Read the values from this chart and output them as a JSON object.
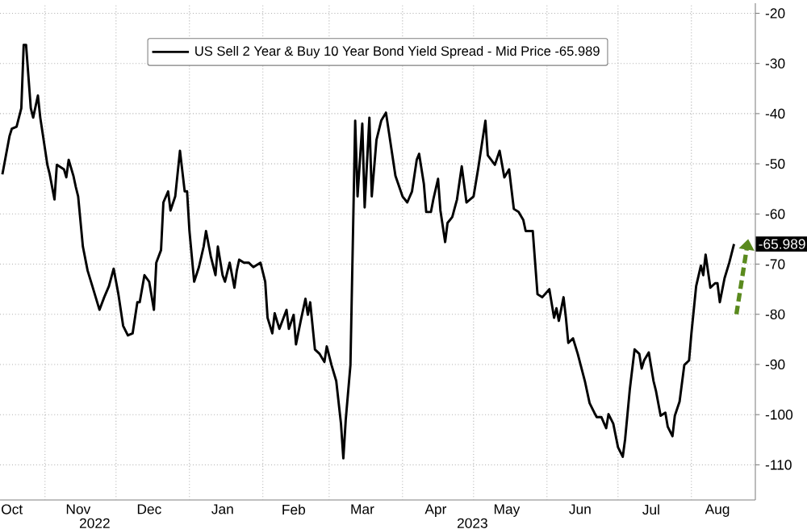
{
  "chart_data": {
    "type": "line",
    "annotations": [
      "2022",
      "2023"
    ],
    "x": [
      "2022-10-14",
      "2022-10-17",
      "2022-10-18",
      "2022-10-20",
      "2022-10-22",
      "2022-10-23",
      "2022-10-24",
      "2022-10-26",
      "2022-10-27",
      "2022-10-29",
      "2022-10-30",
      "2022-10-31",
      "2022-11-02",
      "2022-11-03",
      "2022-11-05",
      "2022-11-06",
      "2022-11-09",
      "2022-11-10",
      "2022-11-11",
      "2022-11-13",
      "2022-11-14",
      "2022-11-15",
      "2022-11-17",
      "2022-11-19",
      "2022-11-21",
      "2022-11-24",
      "2022-11-26",
      "2022-11-28",
      "2022-11-30",
      "2022-12-02",
      "2022-12-04",
      "2022-12-06",
      "2022-12-08",
      "2022-12-10",
      "2022-12-11",
      "2022-12-13",
      "2022-12-15",
      "2022-12-17",
      "2022-12-18",
      "2022-12-20",
      "2022-12-21",
      "2022-12-23",
      "2022-12-24",
      "2022-12-26",
      "2022-12-28",
      "2022-12-30",
      "2022-12-31",
      "2023-01-01",
      "2023-01-03",
      "2023-01-05",
      "2023-01-07",
      "2023-01-08",
      "2023-01-10",
      "2023-01-12",
      "2023-01-13",
      "2023-01-15",
      "2023-01-16",
      "2023-01-18",
      "2023-01-20",
      "2023-01-21",
      "2023-01-22",
      "2023-01-24",
      "2023-01-26",
      "2023-01-28",
      "2023-01-31",
      "2023-02-02",
      "2023-02-03",
      "2023-02-05",
      "2023-02-06",
      "2023-02-08",
      "2023-02-11",
      "2023-02-12",
      "2023-02-14",
      "2023-02-15",
      "2023-02-17",
      "2023-02-19",
      "2023-02-20",
      "2023-02-21",
      "2023-02-23",
      "2023-02-25",
      "2023-02-27",
      "2023-02-28",
      "2023-03-02",
      "2023-03-04",
      "2023-03-06",
      "2023-03-07",
      "2023-03-08",
      "2023-03-10",
      "2023-03-12",
      "2023-03-13",
      "2023-03-15",
      "2023-03-16",
      "2023-03-18",
      "2023-03-19",
      "2023-03-21",
      "2023-03-23",
      "2023-03-25",
      "2023-03-27",
      "2023-03-29",
      "2023-04-01",
      "2023-04-03",
      "2023-04-05",
      "2023-04-07",
      "2023-04-08",
      "2023-04-10",
      "2023-04-11",
      "2023-04-13",
      "2023-04-14",
      "2023-04-16",
      "2023-04-17",
      "2023-04-19",
      "2023-04-20",
      "2023-04-22",
      "2023-04-24",
      "2023-04-26",
      "2023-04-28",
      "2023-05-01",
      "2023-05-03",
      "2023-05-06",
      "2023-05-07",
      "2023-05-10",
      "2023-05-12",
      "2023-05-14",
      "2023-05-16",
      "2023-05-18",
      "2023-05-20",
      "2023-05-22",
      "2023-05-23",
      "2023-05-26",
      "2023-05-27",
      "2023-05-28",
      "2023-05-30",
      "2023-06-02",
      "2023-06-04",
      "2023-06-05",
      "2023-06-06",
      "2023-06-08",
      "2023-06-09",
      "2023-06-10",
      "2023-06-12",
      "2023-06-14",
      "2023-06-17",
      "2023-06-19",
      "2023-06-21",
      "2023-06-22",
      "2023-06-24",
      "2023-06-26",
      "2023-06-27",
      "2023-06-29",
      "2023-07-01",
      "2023-07-03",
      "2023-07-04",
      "2023-07-06",
      "2023-07-08",
      "2023-07-10",
      "2023-07-11",
      "2023-07-12",
      "2023-07-14",
      "2023-07-16",
      "2023-07-17",
      "2023-07-19",
      "2023-07-21",
      "2023-07-22",
      "2023-07-24",
      "2023-07-25",
      "2023-07-27",
      "2023-07-29",
      "2023-07-31",
      "2023-08-01",
      "2023-08-03",
      "2023-08-05",
      "2023-08-06",
      "2023-08-07",
      "2023-08-09",
      "2023-08-11",
      "2023-08-12",
      "2023-08-13",
      "2023-08-15",
      "2023-08-17",
      "2023-08-19"
    ],
    "series": [
      {
        "name": "US Sell 2 Year & Buy 10 Year Bond Yield Spread - Mid Price -65.989",
        "color": "#000000",
        "values": [
          -52.1,
          -44.5,
          -43,
          -42.6,
          -38.9,
          -26.3,
          -26.3,
          -38.9,
          -40.8,
          -36.4,
          -40.8,
          -43.9,
          -50.2,
          -52.1,
          -57.1,
          -50.2,
          -51.1,
          -52.7,
          -49.2,
          -52.4,
          -54.6,
          -56.5,
          -66.5,
          -71.3,
          -74.4,
          -79.1,
          -76.6,
          -74.4,
          -70.9,
          -76,
          -82.3,
          -84.2,
          -83.8,
          -77.6,
          -77.6,
          -72.2,
          -73.5,
          -79.1,
          -69.7,
          -67.2,
          -57.7,
          -55.5,
          -59.3,
          -56.5,
          -47.4,
          -55.5,
          -55.5,
          -63.4,
          -73.5,
          -70.6,
          -66.5,
          -63.4,
          -68.4,
          -72.2,
          -66.5,
          -72.2,
          -73.5,
          -69.7,
          -74.7,
          -71.3,
          -69.1,
          -69.7,
          -69.7,
          -70.6,
          -69.7,
          -73.5,
          -80.7,
          -83.8,
          -79.8,
          -82.9,
          -79.1,
          -82.9,
          -80.1,
          -86,
          -81.3,
          -76.9,
          -80.1,
          -77.6,
          -87,
          -87.9,
          -89.5,
          -86.4,
          -90.1,
          -93.3,
          -101.8,
          -108.7,
          -101.1,
          -90.1,
          -41.4,
          -56.5,
          -42,
          -58.7,
          -40.8,
          -56.5,
          -45.2,
          -41.4,
          -39.8,
          -46.1,
          -52.4,
          -56.5,
          -57.7,
          -55.5,
          -49.2,
          -48,
          -54,
          -59.6,
          -59.6,
          -57.1,
          -53,
          -59.3,
          -65.6,
          -61.8,
          -60.6,
          -57.1,
          -50.5,
          -57.7,
          -56.5,
          -50.8,
          -41.4,
          -48.3,
          -50.2,
          -47.4,
          -52.7,
          -51.1,
          -59,
          -59.6,
          -61.2,
          -63.4,
          -63.4,
          -69.7,
          -76,
          -76.6,
          -75,
          -80.7,
          -78.8,
          -81.3,
          -76.6,
          -80.7,
          -85.7,
          -84.8,
          -87.9,
          -93.3,
          -97.7,
          -99.6,
          -100.5,
          -100.5,
          -102.7,
          -99.9,
          -101.8,
          -106.5,
          -108.4,
          -104.9,
          -94.9,
          -87,
          -87.9,
          -90.8,
          -89.2,
          -87.6,
          -93.3,
          -95.2,
          -100.2,
          -99.6,
          -102.4,
          -104.3,
          -100.2,
          -97.4,
          -90.1,
          -89.2,
          -83.8,
          -74.4,
          -70.3,
          -72.2,
          -68.1,
          -74.7,
          -73.8,
          -73.8,
          -77.6,
          -72.8,
          -69.7,
          -65.989
        ],
        "value_labels": [
          null,
          null,
          null,
          null,
          null,
          null,
          null,
          null,
          null,
          null,
          null,
          null,
          null,
          null,
          null,
          null,
          null,
          null,
          null,
          null,
          null,
          null,
          null,
          null,
          null,
          null,
          null,
          null,
          null,
          null,
          null,
          null,
          null,
          null,
          null,
          null,
          null,
          null,
          null,
          null,
          null,
          null,
          null,
          null,
          null,
          null,
          null,
          null,
          null,
          null,
          null,
          null,
          null,
          null,
          null,
          null,
          null,
          null,
          null,
          null,
          null,
          null,
          null,
          null,
          null,
          null,
          null,
          null,
          null,
          null,
          null,
          null,
          null,
          null,
          null,
          null,
          null,
          null,
          null,
          null,
          null,
          null,
          null,
          null,
          null,
          null,
          null,
          null,
          null,
          null,
          null,
          null,
          null,
          null,
          null,
          null,
          null,
          null,
          null,
          null,
          null,
          null,
          null,
          null,
          null,
          null,
          null,
          null,
          null,
          null,
          null,
          null,
          null,
          null,
          null,
          null,
          null,
          null,
          null,
          null,
          null,
          null,
          null,
          null,
          null,
          null,
          null,
          null,
          null,
          null,
          null,
          null,
          null,
          null,
          null,
          null,
          null,
          null,
          null,
          null,
          null,
          null,
          null,
          null,
          null,
          null,
          null,
          null,
          null,
          null,
          null,
          null,
          null,
          null,
          null,
          null,
          null,
          null,
          null,
          null,
          null,
          null,
          null,
          null,
          null,
          null,
          null,
          null,
          null,
          null,
          null,
          null,
          null,
          null,
          null,
          null,
          null,
          null,
          null,
          "-65.989"
        ]
      }
    ],
    "xlim": [
      "2022-10-13",
      "2023-08-28"
    ],
    "xticks": [
      {
        "value": "2022-10-18",
        "label": "Oct"
      },
      {
        "value": "2022-11-15",
        "label": "Nov"
      },
      {
        "value": "2022-12-15",
        "label": "Dec"
      },
      {
        "value": "2023-01-15",
        "label": "Jan"
      },
      {
        "value": "2023-02-14",
        "label": "Feb"
      },
      {
        "value": "2023-03-15",
        "label": "Mar"
      },
      {
        "value": "2023-04-15",
        "label": "Apr"
      },
      {
        "value": "2023-05-15",
        "label": "May"
      },
      {
        "value": "2023-06-15",
        "label": "Jun"
      },
      {
        "value": "2023-07-15",
        "label": "Jul"
      },
      {
        "value": "2023-08-12",
        "label": "Aug"
      },
      {
        "value": "2022-11-01",
        "label": null
      },
      {
        "value": "2022-12-01",
        "label": null
      },
      {
        "value": "2023-01-01",
        "label": null
      },
      {
        "value": "2023-02-01",
        "label": null
      },
      {
        "value": "2023-03-01",
        "label": null
      },
      {
        "value": "2023-04-01",
        "label": null
      },
      {
        "value": "2023-05-01",
        "label": null
      },
      {
        "value": "2023-06-01",
        "label": null
      },
      {
        "value": "2023-07-01",
        "label": null
      },
      {
        "value": "2023-08-01",
        "label": null
      }
    ],
    "ylim": [
      -117,
      -18
    ],
    "yticks": [
      -20,
      -30,
      -40,
      -50,
      -60,
      -70,
      -80,
      -90,
      -100,
      -110
    ],
    "grid": true,
    "legend": "top",
    "marker": "none",
    "line_style": "solid"
  }
}
